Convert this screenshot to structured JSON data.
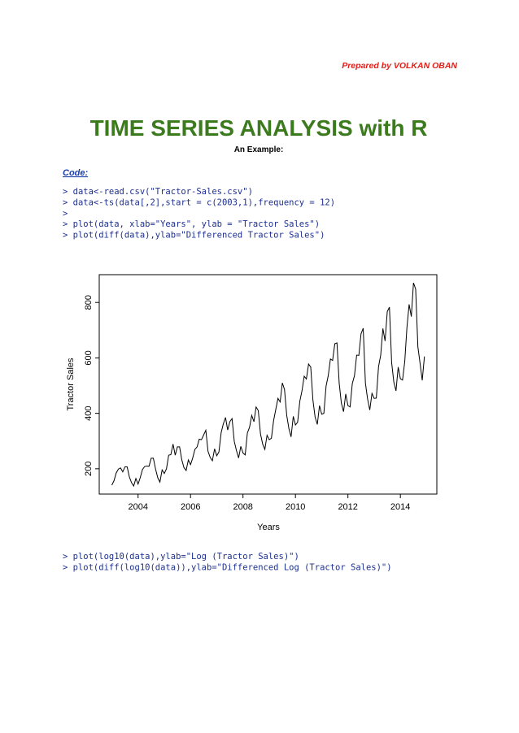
{
  "header": {
    "prepared_by": "Prepared by VOLKAN OBAN",
    "title": "TIME SERIES ANALYSIS with R",
    "subtitle": "An Example:"
  },
  "code_label": "Code:",
  "code_block_1": [
    "> data<-read.csv(\"Tractor-Sales.csv\")",
    "> data<-ts(data[,2],start = c(2003,1),frequency = 12)",
    ">",
    "> plot(data, xlab=\"Years\", ylab = \"Tractor Sales\")",
    "> plot(diff(data),ylab=\"Differenced Tractor Sales\")"
  ],
  "chart_data": {
    "type": "line",
    "xlabel": "Years",
    "ylabel": "Tractor Sales",
    "color": "#000000",
    "x": [
      2003,
      2003.083,
      2003.167,
      2003.25,
      2003.333,
      2003.417,
      2003.5,
      2003.583,
      2003.667,
      2003.75,
      2003.833,
      2003.917,
      2004,
      2004.083,
      2004.167,
      2004.25,
      2004.333,
      2004.417,
      2004.5,
      2004.583,
      2004.667,
      2004.75,
      2004.833,
      2004.917,
      2005,
      2005.083,
      2005.167,
      2005.25,
      2005.333,
      2005.417,
      2005.5,
      2005.583,
      2005.667,
      2005.75,
      2005.833,
      2005.917,
      2006,
      2006.083,
      2006.167,
      2006.25,
      2006.333,
      2006.417,
      2006.5,
      2006.583,
      2006.667,
      2006.75,
      2006.833,
      2006.917,
      2007,
      2007.083,
      2007.167,
      2007.25,
      2007.333,
      2007.417,
      2007.5,
      2007.583,
      2007.667,
      2007.75,
      2007.833,
      2007.917,
      2008,
      2008.083,
      2008.167,
      2008.25,
      2008.333,
      2008.417,
      2008.5,
      2008.583,
      2008.667,
      2008.75,
      2008.833,
      2008.917,
      2009,
      2009.083,
      2009.167,
      2009.25,
      2009.333,
      2009.417,
      2009.5,
      2009.583,
      2009.667,
      2009.75,
      2009.833,
      2009.917,
      2010,
      2010.083,
      2010.167,
      2010.25,
      2010.333,
      2010.417,
      2010.5,
      2010.583,
      2010.667,
      2010.75,
      2010.833,
      2010.917,
      2011,
      2011.083,
      2011.167,
      2011.25,
      2011.333,
      2011.417,
      2011.5,
      2011.583,
      2011.667,
      2011.75,
      2011.833,
      2011.917,
      2012,
      2012.083,
      2012.167,
      2012.25,
      2012.333,
      2012.417,
      2012.5,
      2012.583,
      2012.667,
      2012.75,
      2012.833,
      2012.917,
      2013,
      2013.083,
      2013.167,
      2013.25,
      2013.333,
      2013.417,
      2013.5,
      2013.583,
      2013.667,
      2013.75,
      2013.833,
      2013.917,
      2014,
      2014.083,
      2014.167,
      2014.25,
      2014.333,
      2014.417,
      2014.5,
      2014.583,
      2014.667,
      2014.75,
      2014.833,
      2014.917
    ],
    "values": [
      141,
      157,
      185,
      199,
      203,
      189,
      207,
      207,
      171,
      150,
      138,
      165,
      145,
      168,
      197,
      208,
      210,
      209,
      238,
      238,
      199,
      168,
      152,
      196,
      183,
      200,
      249,
      251,
      289,
      249,
      279,
      279,
      232,
      204,
      194,
      232,
      215,
      239,
      270,
      279,
      307,
      305,
      322,
      339,
      263,
      241,
      229,
      272,
      247,
      261,
      330,
      362,
      385,
      340,
      370,
      381,
      299,
      266,
      239,
      281,
      257,
      250,
      329,
      350,
      393,
      370,
      423,
      410,
      326,
      289,
      270,
      321,
      305,
      310,
      374,
      414,
      454,
      441,
      510,
      486,
      393,
      345,
      315,
      389,
      358,
      368,
      444,
      482,
      534,
      524,
      578,
      567,
      447,
      386,
      360,
      428,
      397,
      400,
      498,
      536,
      596,
      591,
      651,
      654,
      509,
      437,
      406,
      470,
      428,
      423,
      507,
      536,
      610,
      609,
      687,
      707,
      509,
      452,
      412,
      472,
      454,
      455,
      568,
      610,
      706,
      661,
      767,
      783,
      583,
      513,
      481,
      567,
      525,
      520,
      587,
      710,
      793,
      749,
      871,
      848,
      640,
      581,
      519,
      605
    ],
    "xlim": [
      2002.52,
      2015.39
    ],
    "ylim": [
      108.7,
      900.3
    ],
    "xticks": [
      2004,
      2006,
      2008,
      2010,
      2012,
      2014
    ],
    "yticks": [
      200,
      400,
      600,
      800
    ]
  },
  "code_block_2": [
    "> plot(log10(data),ylab=\"Log (Tractor Sales)\")",
    "> plot(diff(log10(data)),ylab=\"Differenced Log (Tractor Sales)\")"
  ]
}
